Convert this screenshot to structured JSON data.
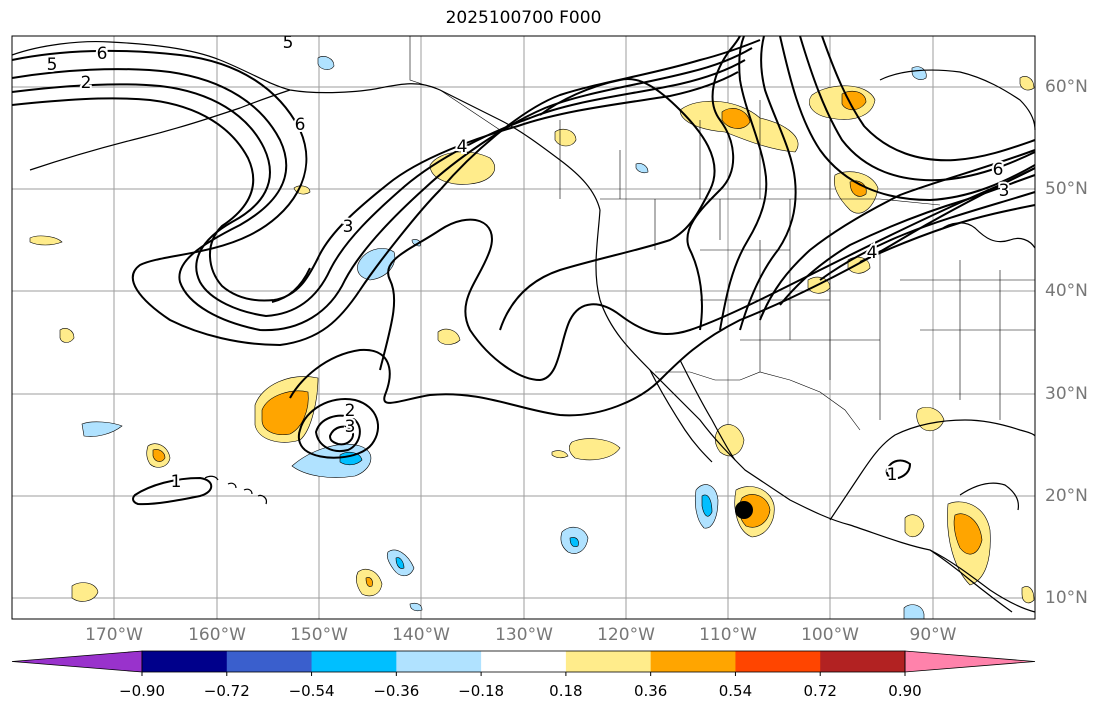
{
  "title": "2025100700 F000",
  "lat_labels": [
    "60°N",
    "50°N",
    "40°N",
    "30°N",
    "20°N",
    "10°N"
  ],
  "lon_labels": [
    "170°W",
    "160°W",
    "150°W",
    "140°W",
    "130°W",
    "120°W",
    "110°W",
    "100°W",
    "90°W"
  ],
  "colorbar": {
    "ticks": [
      "−0.90",
      "−0.72",
      "−0.54",
      "−0.36",
      "−0.18",
      "0.18",
      "0.36",
      "0.54",
      "0.72",
      "0.90"
    ],
    "colors": [
      "#9932cc",
      "#00008b",
      "#3a5fcd",
      "#00bfff",
      "#b0e2ff",
      "#ffffff",
      "#ffec8b",
      "#ffa500",
      "#ff4500",
      "#b22222",
      "#ff82ab"
    ]
  },
  "contour_labels": [
    "5",
    "6",
    "2",
    "5",
    "6",
    "3",
    "4",
    "6",
    "3",
    "2",
    "3",
    "1",
    "4",
    "1"
  ],
  "marker": "storm-center-marker",
  "colors": {
    "gridline": "#9e9e9e",
    "contour": "#000000",
    "coast": "#000000"
  }
}
